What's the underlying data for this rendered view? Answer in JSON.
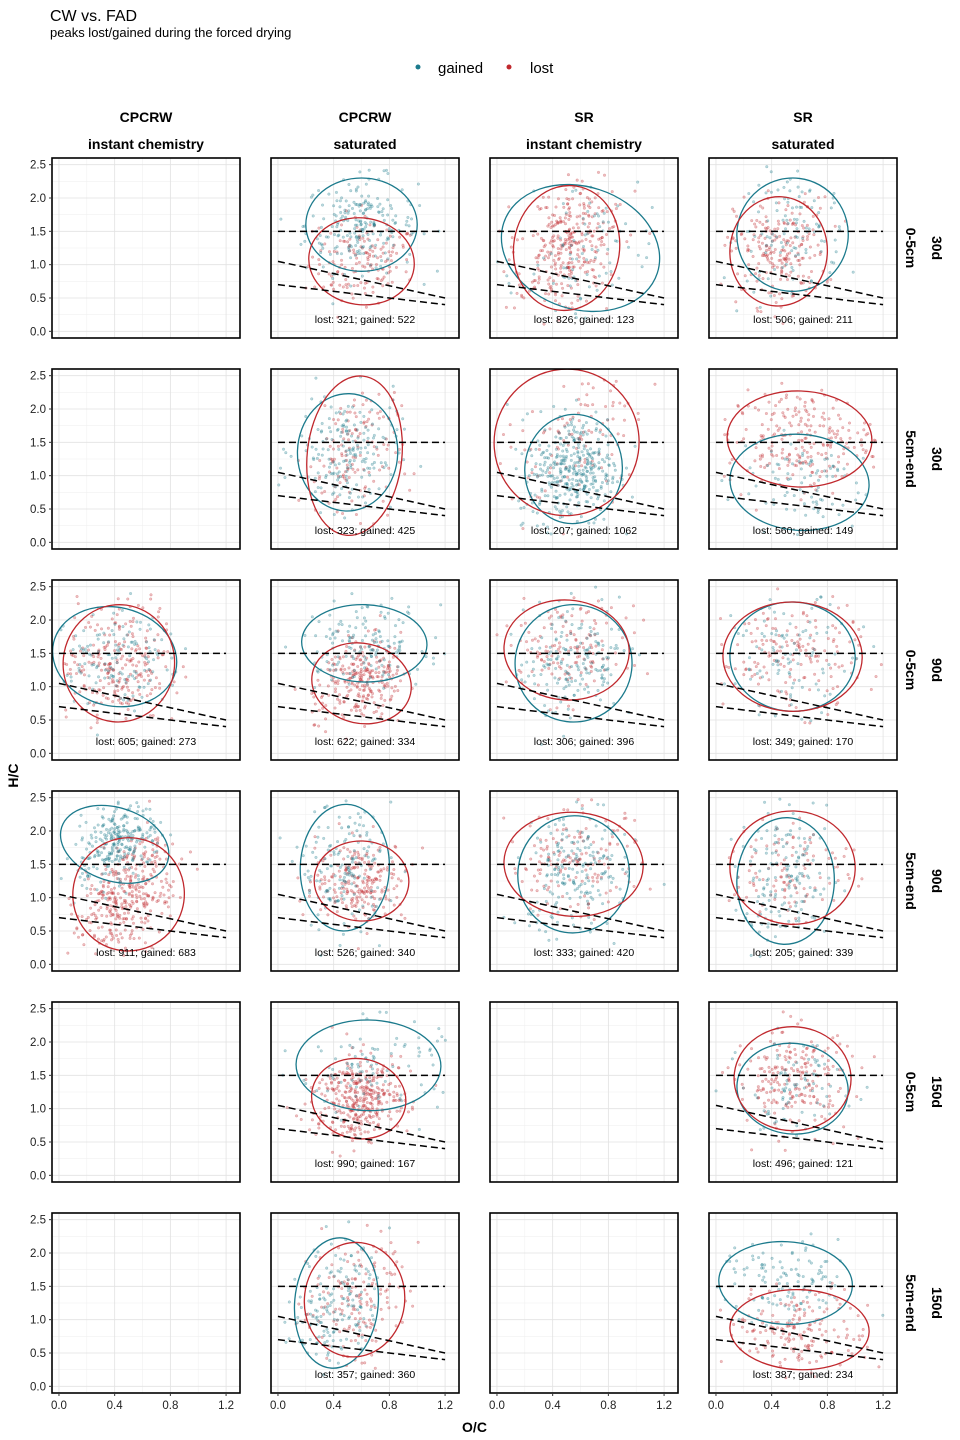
{
  "chart_data": {
    "type": "scatter",
    "title": "CW vs. FAD",
    "subtitle": "peaks lost/gained during the forced drying",
    "xlabel": "O/C",
    "ylabel": "H/C",
    "xlim": [
      -0.05,
      1.3
    ],
    "ylim": [
      -0.1,
      2.6
    ],
    "x_ticks": [
      0.0,
      0.4,
      0.8,
      1.2
    ],
    "x_tick_labels": [
      "0.0",
      "0.4",
      "0.8",
      "1.2"
    ],
    "y_ticks": [
      0.0,
      0.5,
      1.0,
      1.5,
      2.0,
      2.5
    ],
    "y_tick_labels": [
      "0.0",
      "0.5",
      "1.0",
      "1.5",
      "2.0",
      "2.5"
    ],
    "grid": true,
    "legend_position": "top",
    "legend": [
      {
        "name": "gained",
        "color": "#1b7a8c"
      },
      {
        "name": "lost",
        "color": "#c0282d"
      }
    ],
    "reference_lines": [
      {
        "x": [
          0.0,
          1.2
        ],
        "y": [
          1.5,
          1.5
        ]
      },
      {
        "x": [
          0.0,
          1.2
        ],
        "y": [
          1.05,
          0.5
        ]
      },
      {
        "x": [
          0.0,
          1.2
        ],
        "y": [
          0.7,
          0.4
        ]
      }
    ],
    "columns": [
      {
        "top": "CPCRW",
        "bottom": "instant chemistry"
      },
      {
        "top": "CPCRW",
        "bottom": "saturated"
      },
      {
        "top": "SR",
        "bottom": "instant chemistry"
      },
      {
        "top": "SR",
        "bottom": "saturated"
      }
    ],
    "rows": [
      {
        "top": "30d",
        "bottom": "0-5cm"
      },
      {
        "top": "30d",
        "bottom": "5cm-end"
      },
      {
        "top": "90d",
        "bottom": "0-5cm"
      },
      {
        "top": "90d",
        "bottom": "5cm-end"
      },
      {
        "top": "150d",
        "bottom": "0-5cm"
      },
      {
        "top": "150d",
        "bottom": "5cm-end"
      }
    ],
    "panels": [
      {
        "row": 0,
        "col": 0,
        "empty": true
      },
      {
        "row": 0,
        "col": 1,
        "lost": 321,
        "gained": 522,
        "gained_ellipse": {
          "cx": 0.6,
          "cy": 1.6,
          "rx": 0.4,
          "ry": 0.7,
          "angle": 0
        },
        "lost_ellipse": {
          "cx": 0.6,
          "cy": 1.05,
          "rx": 0.38,
          "ry": 0.65,
          "angle": 0.4
        }
      },
      {
        "row": 0,
        "col": 2,
        "lost": 826,
        "gained": 123,
        "gained_ellipse": {
          "cx": 0.6,
          "cy": 1.25,
          "rx": 0.58,
          "ry": 0.92,
          "angle": 0.9
        },
        "lost_ellipse": {
          "cx": 0.5,
          "cy": 1.25,
          "rx": 0.38,
          "ry": 0.94,
          "angle": 0.45
        }
      },
      {
        "row": 0,
        "col": 3,
        "lost": 506,
        "gained": 211,
        "gained_ellipse": {
          "cx": 0.55,
          "cy": 1.45,
          "rx": 0.4,
          "ry": 0.85,
          "angle": 0.35
        },
        "lost_ellipse": {
          "cx": 0.45,
          "cy": 1.2,
          "rx": 0.35,
          "ry": 0.82,
          "angle": 0.15
        }
      },
      {
        "row": 1,
        "col": 0,
        "empty": true
      },
      {
        "row": 1,
        "col": 1,
        "lost": 323,
        "gained": 425,
        "gained_ellipse": {
          "cx": 0.5,
          "cy": 1.35,
          "rx": 0.36,
          "ry": 0.88,
          "angle": 0.1
        },
        "lost_ellipse": {
          "cx": 0.55,
          "cy": 1.3,
          "rx": 0.34,
          "ry": 1.2,
          "angle": 0.3
        }
      },
      {
        "row": 1,
        "col": 2,
        "lost": 207,
        "gained": 1062,
        "gained_ellipse": {
          "cx": 0.55,
          "cy": 1.1,
          "rx": 0.35,
          "ry": 0.82,
          "angle": 0.3
        },
        "lost_ellipse": {
          "cx": 0.5,
          "cy": 1.5,
          "rx": 0.52,
          "ry": 1.1,
          "angle": 0.85
        }
      },
      {
        "row": 1,
        "col": 3,
        "lost": 560,
        "gained": 149,
        "gained_ellipse": {
          "cx": 0.6,
          "cy": 0.9,
          "rx": 0.5,
          "ry": 0.72,
          "angle": 0.2
        },
        "lost_ellipse": {
          "cx": 0.6,
          "cy": 1.55,
          "rx": 0.52,
          "ry": 0.72,
          "angle": 0.1
        }
      },
      {
        "row": 2,
        "col": 0,
        "lost": 605,
        "gained": 273,
        "gained_ellipse": {
          "cx": 0.4,
          "cy": 1.45,
          "rx": 0.45,
          "ry": 0.74,
          "angle": 0.65
        },
        "lost_ellipse": {
          "cx": 0.43,
          "cy": 1.35,
          "rx": 0.4,
          "ry": 0.88,
          "angle": 0.3
        }
      },
      {
        "row": 2,
        "col": 1,
        "lost": 622,
        "gained": 334,
        "gained_ellipse": {
          "cx": 0.62,
          "cy": 1.65,
          "rx": 0.45,
          "ry": 0.58,
          "angle": 0.1
        },
        "lost_ellipse": {
          "cx": 0.6,
          "cy": 1.05,
          "rx": 0.36,
          "ry": 0.6,
          "angle": 0.6
        }
      },
      {
        "row": 2,
        "col": 2,
        "lost": 306,
        "gained": 396,
        "gained_ellipse": {
          "cx": 0.55,
          "cy": 1.35,
          "rx": 0.42,
          "ry": 0.88,
          "angle": 0.35
        },
        "lost_ellipse": {
          "cx": 0.5,
          "cy": 1.55,
          "rx": 0.45,
          "ry": 0.75,
          "angle": 0.2
        }
      },
      {
        "row": 2,
        "col": 3,
        "lost": 349,
        "gained": 170,
        "gained_ellipse": {
          "cx": 0.55,
          "cy": 1.45,
          "rx": 0.45,
          "ry": 0.82,
          "angle": 0.15
        },
        "lost_ellipse": {
          "cx": 0.55,
          "cy": 1.45,
          "rx": 0.5,
          "ry": 0.82,
          "angle": 0.05
        }
      },
      {
        "row": 3,
        "col": 0,
        "lost": 911,
        "gained": 683,
        "gained_ellipse": {
          "cx": 0.4,
          "cy": 1.8,
          "rx": 0.4,
          "ry": 0.55,
          "angle": 0.9
        },
        "lost_ellipse": {
          "cx": 0.5,
          "cy": 1.05,
          "rx": 0.4,
          "ry": 0.85,
          "angle": 0.8
        }
      },
      {
        "row": 3,
        "col": 1,
        "lost": 526,
        "gained": 340,
        "gained_ellipse": {
          "cx": 0.48,
          "cy": 1.45,
          "rx": 0.32,
          "ry": 0.95,
          "angle": 0.1
        },
        "lost_ellipse": {
          "cx": 0.6,
          "cy": 1.25,
          "rx": 0.34,
          "ry": 0.6,
          "angle": 0.1
        }
      },
      {
        "row": 3,
        "col": 2,
        "lost": 333,
        "gained": 420,
        "gained_ellipse": {
          "cx": 0.55,
          "cy": 1.35,
          "rx": 0.4,
          "ry": 0.88,
          "angle": 0.45
        },
        "lost_ellipse": {
          "cx": 0.55,
          "cy": 1.5,
          "rx": 0.5,
          "ry": 0.78,
          "angle": 0.15
        }
      },
      {
        "row": 3,
        "col": 3,
        "lost": 205,
        "gained": 339,
        "gained_ellipse": {
          "cx": 0.5,
          "cy": 1.25,
          "rx": 0.35,
          "ry": 0.95,
          "angle": 0.1
        },
        "lost_ellipse": {
          "cx": 0.55,
          "cy": 1.45,
          "rx": 0.45,
          "ry": 0.85,
          "angle": 0.1
        }
      },
      {
        "row": 4,
        "col": 0,
        "empty": true
      },
      {
        "row": 4,
        "col": 1,
        "lost": 990,
        "gained": 167,
        "gained_ellipse": {
          "cx": 0.65,
          "cy": 1.65,
          "rx": 0.52,
          "ry": 0.68,
          "angle": 0.05
        },
        "lost_ellipse": {
          "cx": 0.58,
          "cy": 1.15,
          "rx": 0.34,
          "ry": 0.6,
          "angle": 0.5
        }
      },
      {
        "row": 4,
        "col": 2,
        "empty": true
      },
      {
        "row": 4,
        "col": 3,
        "lost": 496,
        "gained": 121,
        "gained_ellipse": {
          "cx": 0.55,
          "cy": 1.3,
          "rx": 0.4,
          "ry": 0.68,
          "angle": 0.3
        },
        "lost_ellipse": {
          "cx": 0.55,
          "cy": 1.45,
          "rx": 0.42,
          "ry": 0.78,
          "angle": 0.05
        }
      },
      {
        "row": 5,
        "col": 0,
        "empty": true
      },
      {
        "row": 5,
        "col": 1,
        "lost": 357,
        "gained": 360,
        "gained_ellipse": {
          "cx": 0.42,
          "cy": 1.25,
          "rx": 0.3,
          "ry": 0.98,
          "angle": 0.25
        },
        "lost_ellipse": {
          "cx": 0.55,
          "cy": 1.3,
          "rx": 0.36,
          "ry": 0.86,
          "angle": 0.35
        }
      },
      {
        "row": 5,
        "col": 2,
        "empty": true
      },
      {
        "row": 5,
        "col": 3,
        "lost": 387,
        "gained": 234,
        "gained_ellipse": {
          "cx": 0.5,
          "cy": 1.55,
          "rx": 0.48,
          "ry": 0.62,
          "angle": 0.15
        },
        "lost_ellipse": {
          "cx": 0.6,
          "cy": 0.85,
          "rx": 0.5,
          "ry": 0.6,
          "angle": 0.1
        }
      }
    ]
  }
}
